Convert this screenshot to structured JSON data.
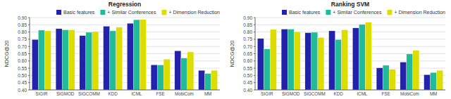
{
  "chart_data": [
    {
      "type": "bar",
      "title": "Regression",
      "y_label": "NDCG@20",
      "categories": [
        "SIGIR",
        "SIGMOD",
        "SIGCOMM",
        "KDD",
        "ICML",
        "FSE",
        "MobiCom",
        "MM"
      ],
      "series": [
        {
          "name": "Basic features",
          "color": "#2222aa",
          "values": [
            0.748,
            0.823,
            0.775,
            0.84,
            0.86,
            0.573,
            0.67,
            0.535
          ]
        },
        {
          "name": "+ Similar Conferences",
          "color": "#22bb99",
          "values": [
            0.813,
            0.815,
            0.798,
            0.808,
            0.885,
            0.572,
            0.62,
            0.513
          ]
        },
        {
          "name": "+ Dimension Reduction",
          "color": "#dddd00",
          "values": [
            0.808,
            0.815,
            0.803,
            0.833,
            0.887,
            0.612,
            0.662,
            0.535
          ]
        }
      ],
      "ylim": [
        0.4,
        0.9
      ],
      "yticks": [
        {
          "value": 0.4,
          "label": "0.40"
        },
        0.45,
        {
          "value": 0.5,
          "label": "0.50"
        },
        0.55,
        {
          "value": 0.6,
          "label": "0.60"
        },
        0.65,
        {
          "value": 0.7,
          "label": "0.70"
        },
        0.75,
        {
          "value": 0.8,
          "label": "0.80"
        },
        0.85,
        {
          "value": 0.9,
          "label": "0.90"
        }
      ],
      "grid": true,
      "legend": "upper right"
    },
    {
      "type": "bar",
      "title": "Ranking SVM",
      "y_label": "NDCG@20",
      "categories": [
        "SIGIR",
        "SIGMOD",
        "SIGCOMM",
        "KDD",
        "ICML",
        "FSE",
        "MobiCom",
        "MM"
      ],
      "series": [
        {
          "name": "Basic features",
          "color": "#2222aa",
          "values": [
            0.755,
            0.82,
            0.795,
            0.808,
            0.828,
            0.552,
            0.592,
            0.505
          ]
        },
        {
          "name": "+ Similar Conferences",
          "color": "#22bb99",
          "values": [
            0.683,
            0.82,
            0.798,
            0.748,
            0.852,
            0.57,
            0.648,
            0.52
          ]
        },
        {
          "name": "+ Dimension Reduction",
          "color": "#dddd00",
          "values": [
            0.818,
            0.802,
            0.762,
            0.815,
            0.868,
            0.542,
            0.673,
            0.535
          ]
        }
      ],
      "ylim": [
        0.4,
        0.9
      ],
      "yticks": [
        {
          "value": 0.4,
          "label": "0.40"
        },
        0.45,
        {
          "value": 0.5,
          "label": "0.50"
        },
        0.55,
        {
          "value": 0.6,
          "label": "0.60"
        },
        0.65,
        {
          "value": 0.7,
          "label": "0.70"
        },
        0.75,
        {
          "value": 0.8,
          "label": "0.80"
        },
        0.85,
        {
          "value": 0.9,
          "label": "0.90"
        }
      ],
      "grid": true,
      "legend": "upper right"
    }
  ]
}
